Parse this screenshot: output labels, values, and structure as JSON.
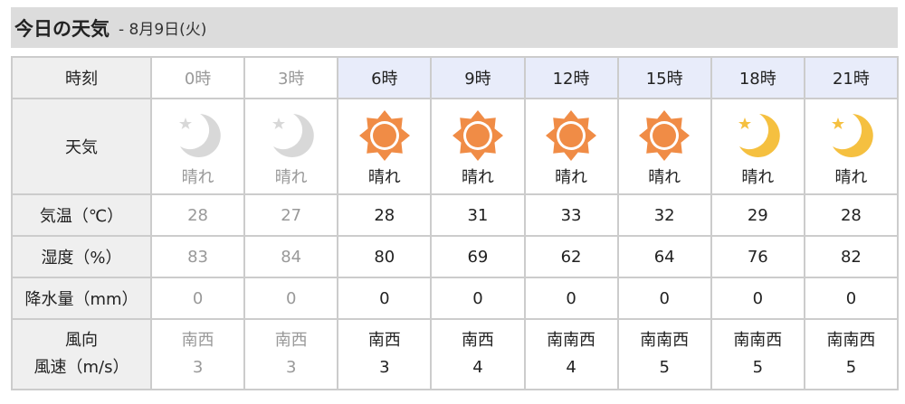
{
  "title": "今日の天気",
  "date": "- 8月9日(火)",
  "labels": {
    "time": "時刻",
    "weather": "天気",
    "temp": "気温（℃）",
    "humidity": "湿度（%）",
    "precip": "降水量（mm）",
    "wind_dir": "風向",
    "wind_speed": "風速（m/s）"
  },
  "colors": {
    "sun": "#f08c46",
    "moon_night": "#f5c040",
    "moon_past": "#d8d8d8",
    "day_header": "#e8ecfa"
  },
  "columns": [
    {
      "time": "0時",
      "icon": "moon-icon",
      "weather": "晴れ",
      "temp": "28",
      "humidity": "83",
      "precip": "0",
      "wind_dir": "南西",
      "wind_speed": "3",
      "past": true
    },
    {
      "time": "3時",
      "icon": "moon-icon",
      "weather": "晴れ",
      "temp": "27",
      "humidity": "84",
      "precip": "0",
      "wind_dir": "南西",
      "wind_speed": "3",
      "past": true
    },
    {
      "time": "6時",
      "icon": "sun-icon",
      "weather": "晴れ",
      "temp": "28",
      "humidity": "80",
      "precip": "0",
      "wind_dir": "南西",
      "wind_speed": "3",
      "past": false
    },
    {
      "time": "9時",
      "icon": "sun-icon",
      "weather": "晴れ",
      "temp": "31",
      "humidity": "69",
      "precip": "0",
      "wind_dir": "南西",
      "wind_speed": "4",
      "past": false
    },
    {
      "time": "12時",
      "icon": "sun-icon",
      "weather": "晴れ",
      "temp": "33",
      "humidity": "62",
      "precip": "0",
      "wind_dir": "南南西",
      "wind_speed": "4",
      "past": false
    },
    {
      "time": "15時",
      "icon": "sun-icon",
      "weather": "晴れ",
      "temp": "32",
      "humidity": "64",
      "precip": "0",
      "wind_dir": "南南西",
      "wind_speed": "5",
      "past": false
    },
    {
      "time": "18時",
      "icon": "moon-icon",
      "weather": "晴れ",
      "temp": "29",
      "humidity": "76",
      "precip": "0",
      "wind_dir": "南南西",
      "wind_speed": "5",
      "past": false
    },
    {
      "time": "21時",
      "icon": "moon-icon",
      "weather": "晴れ",
      "temp": "28",
      "humidity": "82",
      "precip": "0",
      "wind_dir": "南南西",
      "wind_speed": "5",
      "past": false
    }
  ]
}
